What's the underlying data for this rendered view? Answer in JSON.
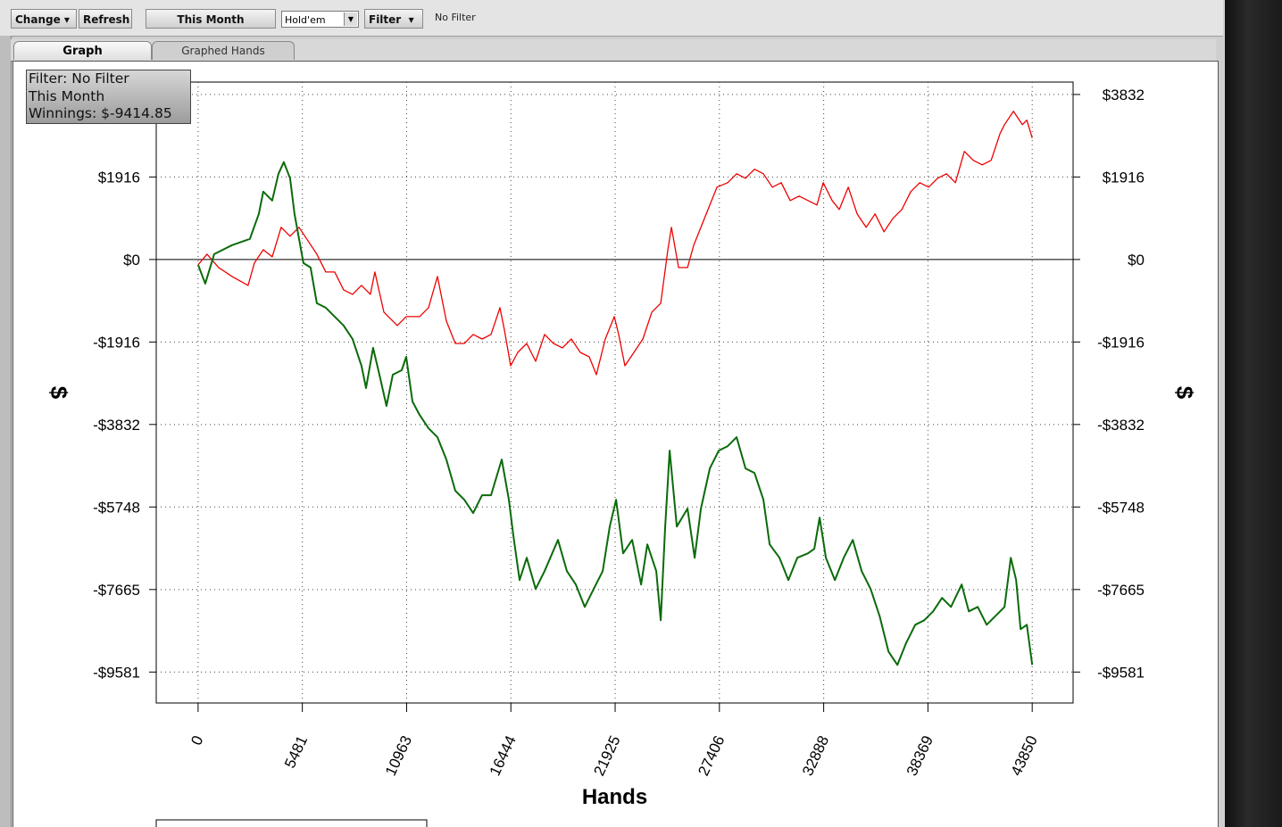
{
  "ui": {
    "toolbar": {
      "change": "Change",
      "refresh": "Refresh",
      "period": "This Month",
      "game": "Hold'em",
      "filter_button": "Filter",
      "filter_status": "No Filter"
    },
    "tabs": [
      "Graph",
      "Graphed Hands"
    ],
    "info": [
      "Filter: No Filter",
      "This Month",
      "Winnings: $-9414.85"
    ]
  },
  "chart_data": {
    "type": "line",
    "xlabel": "Hands",
    "ylabel": "$",
    "y2label": "$",
    "xlim": [
      -2200,
      46000
    ],
    "ylim": [
      -10300,
      4120
    ],
    "y2lim": [
      -10300,
      4120
    ],
    "xticks": [
      0,
      5481,
      10963,
      16444,
      21925,
      27406,
      32888,
      38369,
      43850
    ],
    "yticks": [
      {
        "value": 3832,
        "label": "$3832"
      },
      {
        "value": 1916,
        "label": "$1916"
      },
      {
        "value": 0,
        "label": "$0"
      },
      {
        "value": -1916,
        "label": "-$1916"
      },
      {
        "value": -3832,
        "label": "-$3832"
      },
      {
        "value": -5748,
        "label": "-$5748"
      },
      {
        "value": -7665,
        "label": "-$7665"
      },
      {
        "value": -9581,
        "label": "-$9581"
      }
    ],
    "y2ticks": [
      {
        "value": 3832,
        "label": "$3832"
      },
      {
        "value": 1916,
        "label": "$1916"
      },
      {
        "value": 0,
        "label": "$0"
      },
      {
        "value": -1916,
        "label": "-$1916"
      },
      {
        "value": -3832,
        "label": "-$3832"
      },
      {
        "value": -5748,
        "label": "-$5748"
      },
      {
        "value": -7665,
        "label": "-$7665"
      },
      {
        "value": -9581,
        "label": "-$9581"
      }
    ],
    "grid": true,
    "series": [
      {
        "color": "#ee0000",
        "x": [
          0,
          470,
          1080,
          1784,
          2629,
          2958,
          3427,
          3897,
          4366,
          4836,
          5305,
          5775,
          6244,
          6714,
          7184,
          7653,
          8122,
          8592,
          9061,
          9296,
          9766,
          10470,
          10939,
          11644,
          12113,
          12583,
          13052,
          13522,
          13991,
          14461,
          14930,
          15400,
          15869,
          16104,
          16433,
          16808,
          17278,
          17747,
          18217,
          18686,
          19156,
          19625,
          20095,
          20564,
          20940,
          21409,
          21879,
          22113,
          22442,
          22912,
          23381,
          23851,
          24321,
          24696,
          24884,
          25259,
          25729,
          26057,
          26433,
          26903,
          27278,
          27842,
          28311,
          28781,
          29250,
          29720,
          30189,
          30659,
          31128,
          31598,
          32067,
          32537,
          32865,
          33335,
          33710,
          34180,
          34649,
          35119,
          35588,
          36058,
          36527,
          36997,
          37466,
          37936,
          38405,
          38875,
          39344,
          39814,
          40283,
          40753,
          41222,
          41692,
          42161,
          42396,
          42865,
          43335,
          43570,
          43850
        ],
        "values": [
          -124,
          124,
          -187,
          -394,
          -601,
          -83,
          228,
          62,
          747,
          539,
          747,
          436,
          124,
          -290,
          -290,
          -705,
          -809,
          -601,
          -809,
          -290,
          -1224,
          -1535,
          -1327,
          -1327,
          -1120,
          -394,
          -1431,
          -1950,
          -1950,
          -1742,
          -1846,
          -1742,
          -1120,
          -1638,
          -2468,
          -2157,
          -1950,
          -2364,
          -1742,
          -1950,
          -2053,
          -1846,
          -2157,
          -2261,
          -2675,
          -1846,
          -1327,
          -1742,
          -2468,
          -2157,
          -1846,
          -1224,
          -1016,
          228,
          747,
          -187,
          -187,
          332,
          747,
          1265,
          1680,
          1784,
          1991,
          1887,
          2095,
          1991,
          1680,
          1784,
          1369,
          1473,
          1369,
          1265,
          1784,
          1369,
          1161,
          1680,
          1058,
          747,
          1058,
          643,
          954,
          1161,
          1576,
          1784,
          1680,
          1887,
          1991,
          1784,
          2510,
          2302,
          2198,
          2302,
          2924,
          3132,
          3443,
          3132,
          3235,
          2821
        ]
      },
      {
        "color": "#0a6b0a",
        "x": [
          0,
          376,
          845,
          1784,
          2723,
          3193,
          3427,
          3897,
          4226,
          4507,
          4836,
          5071,
          5540,
          5916,
          6244,
          6714,
          7184,
          7653,
          8122,
          8592,
          8827,
          9202,
          9531,
          9906,
          10235,
          10705,
          10939,
          11268,
          11644,
          12113,
          12583,
          13052,
          13522,
          13991,
          14461,
          14930,
          15400,
          15963,
          16339,
          16573,
          16902,
          17278,
          17747,
          18217,
          18921,
          19391,
          19860,
          20330,
          20799,
          21269,
          21644,
          21973,
          22348,
          22818,
          23287,
          23616,
          24086,
          24321,
          24555,
          24790,
          25166,
          25729,
          26105,
          26433,
          26903,
          27372,
          27842,
          28311,
          28781,
          29250,
          29720,
          30048,
          30564,
          31034,
          31503,
          32067,
          32396,
          32677,
          33006,
          33476,
          33945,
          34415,
          34884,
          35354,
          35823,
          36293,
          36762,
          37232,
          37701,
          38171,
          38640,
          39110,
          39579,
          40142,
          40518,
          40987,
          41457,
          41926,
          42396,
          42725,
          43006,
          43241,
          43570,
          43850
        ],
        "values": [
          -124,
          -560,
          124,
          332,
          477,
          1058,
          1576,
          1369,
          1991,
          2261,
          1887,
          1058,
          -83,
          -187,
          -1016,
          -1120,
          -1327,
          -1535,
          -1846,
          -2468,
          -2987,
          -2053,
          -2675,
          -3401,
          -2675,
          -2572,
          -2261,
          -3298,
          -3609,
          -3920,
          -4127,
          -4646,
          -5372,
          -5579,
          -5890,
          -5475,
          -5475,
          -4646,
          -5579,
          -6409,
          -7446,
          -6927,
          -7653,
          -7238,
          -6512,
          -7238,
          -7549,
          -8068,
          -7653,
          -7238,
          -6201,
          -5579,
          -6823,
          -6512,
          -7549,
          -6616,
          -7238,
          -8379,
          -6201,
          -4438,
          -6201,
          -5786,
          -6927,
          -5786,
          -4853,
          -4438,
          -4335,
          -4127,
          -4853,
          -4957,
          -5579,
          -6616,
          -6927,
          -7446,
          -6927,
          -6823,
          -6720,
          -5994,
          -6927,
          -7446,
          -6927,
          -6512,
          -7238,
          -7653,
          -8275,
          -9105,
          -9416,
          -8897,
          -8483,
          -8379,
          -8172,
          -7860,
          -8068,
          -7549,
          -8172,
          -8068,
          -8483,
          -8275,
          -8068,
          -6927,
          -7446,
          -8586,
          -8483,
          -9416
        ]
      }
    ]
  }
}
